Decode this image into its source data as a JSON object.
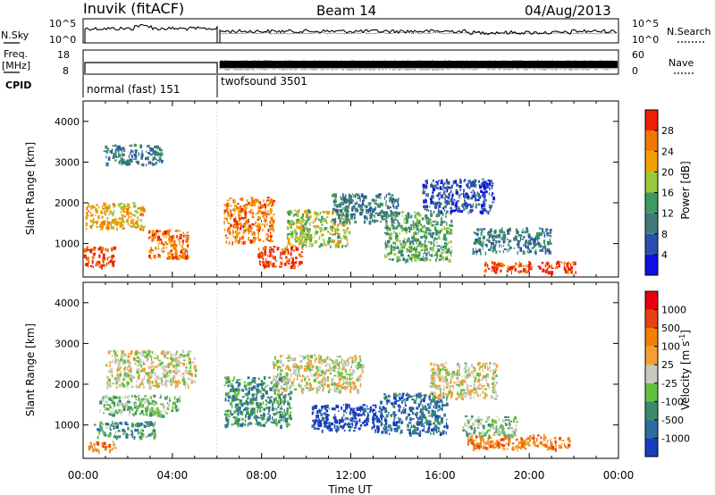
{
  "header": {
    "station": "Inuvik (fitACF)",
    "beam": "Beam 14",
    "date": "04/Aug/2013"
  },
  "top_panels": {
    "nsky_label": "N.Sky",
    "nsearch_label": "N.Search",
    "nsky_ticks": [
      "10^5",
      "10^0"
    ],
    "nsearch_ticks": [
      "10^5",
      "10^0"
    ],
    "freq_label_1": "Freq.",
    "freq_label_2": "[MHz]",
    "freq_ticks": [
      "18",
      "8"
    ],
    "nave_label": "Nave",
    "nave_ticks": [
      "60",
      "0"
    ],
    "cpid_label": "CPID",
    "cpid_modes": [
      "normal (fast) 151",
      "twofsound 3501"
    ]
  },
  "chart_data": [
    {
      "type": "heatmap",
      "name": "power",
      "ylabel": "Slant Range [km]",
      "ylim": [
        180,
        4500
      ],
      "yticks": [
        "1000",
        "2000",
        "3000",
        "4000"
      ],
      "x": [
        "00:00",
        "04:00",
        "08:00",
        "12:00",
        "16:00",
        "20:00",
        "00:00"
      ],
      "colorbar_title": "Power [dB]",
      "colorbar_ticks": [
        "4",
        "8",
        "12",
        "16",
        "20",
        "24",
        "28"
      ],
      "colorbar_colors": [
        "#1010e0",
        "#2a4fb0",
        "#3e7a7a",
        "#3c9a62",
        "#9ac93c",
        "#f0a000",
        "#f47800",
        "#ee2000"
      ],
      "blobs": [
        {
          "t": 0.6,
          "r": 700,
          "dt": 1.6,
          "dr": 500,
          "lvl": 7
        },
        {
          "t": 1.4,
          "r": 1700,
          "dt": 2.6,
          "dr": 650,
          "lvl": 5
        },
        {
          "t": 3.8,
          "r": 1000,
          "dt": 1.8,
          "dr": 700,
          "lvl": 6
        },
        {
          "t": 2.2,
          "r": 3200,
          "dt": 2.6,
          "dr": 500,
          "lvl": 2
        },
        {
          "t": 7.4,
          "r": 1600,
          "dt": 2.2,
          "dr": 1100,
          "lvl": 6
        },
        {
          "t": 8.8,
          "r": 700,
          "dt": 2.0,
          "dr": 500,
          "lvl": 7
        },
        {
          "t": 10.5,
          "r": 1400,
          "dt": 2.8,
          "dr": 900,
          "lvl": 4
        },
        {
          "t": 12.6,
          "r": 1900,
          "dt": 3.0,
          "dr": 700,
          "lvl": 2
        },
        {
          "t": 15.0,
          "r": 1200,
          "dt": 3.0,
          "dr": 1200,
          "lvl": 3
        },
        {
          "t": 16.8,
          "r": 2200,
          "dt": 3.2,
          "dr": 800,
          "lvl": 1
        },
        {
          "t": 20.0,
          "r": 450,
          "dt": 4.2,
          "dr": 260,
          "lvl": 7
        },
        {
          "t": 19.2,
          "r": 1100,
          "dt": 3.5,
          "dr": 600,
          "lvl": 2
        }
      ]
    },
    {
      "type": "heatmap",
      "name": "velocity",
      "xlabel": "Time UT",
      "ylabel": "Slant Range [km]",
      "ylim": [
        180,
        4500
      ],
      "yticks": [
        "1000",
        "2000",
        "3000",
        "4000"
      ],
      "x": [
        "00:00",
        "04:00",
        "08:00",
        "12:00",
        "16:00",
        "20:00",
        "00:00"
      ],
      "colorbar_title": "Velocity [m s",
      "colorbar_sup": "-1",
      "colorbar_close": "]",
      "colorbar_ticks": [
        "1000",
        "500",
        "100",
        "25",
        "-25",
        "-100",
        "-500",
        "-1000"
      ],
      "colorbar_colors": [
        "#1a3cc0",
        "#2d6ea0",
        "#3c8a6a",
        "#66c040",
        "#c8c8c0",
        "#f4a030",
        "#f48000",
        "#e84010",
        "#e80010"
      ],
      "blobs": [
        {
          "t": 0.8,
          "r": 500,
          "dt": 1.2,
          "dr": 250,
          "lvl": 6
        },
        {
          "t": 1.8,
          "r": 900,
          "dt": 2.8,
          "dr": 400,
          "lvl": 2
        },
        {
          "t": 2.5,
          "r": 1500,
          "dt": 3.6,
          "dr": 500,
          "lvl": 3
        },
        {
          "t": 3.0,
          "r": 2400,
          "dt": 4.0,
          "dr": 900,
          "lvl": 4
        },
        {
          "t": 7.8,
          "r": 1600,
          "dt": 3.0,
          "dr": 1200,
          "lvl": 2
        },
        {
          "t": 11.8,
          "r": 1200,
          "dt": 3.2,
          "dr": 650,
          "lvl": 0
        },
        {
          "t": 10.5,
          "r": 2300,
          "dt": 4.0,
          "dr": 900,
          "lvl": 4
        },
        {
          "t": 14.8,
          "r": 1300,
          "dt": 3.0,
          "dr": 1000,
          "lvl": 1
        },
        {
          "t": 17.0,
          "r": 2100,
          "dt": 3.0,
          "dr": 900,
          "lvl": 4
        },
        {
          "t": 19.5,
          "r": 600,
          "dt": 4.6,
          "dr": 350,
          "lvl": 6
        },
        {
          "t": 18.2,
          "r": 1000,
          "dt": 2.4,
          "dr": 500,
          "lvl": 3
        }
      ]
    }
  ]
}
